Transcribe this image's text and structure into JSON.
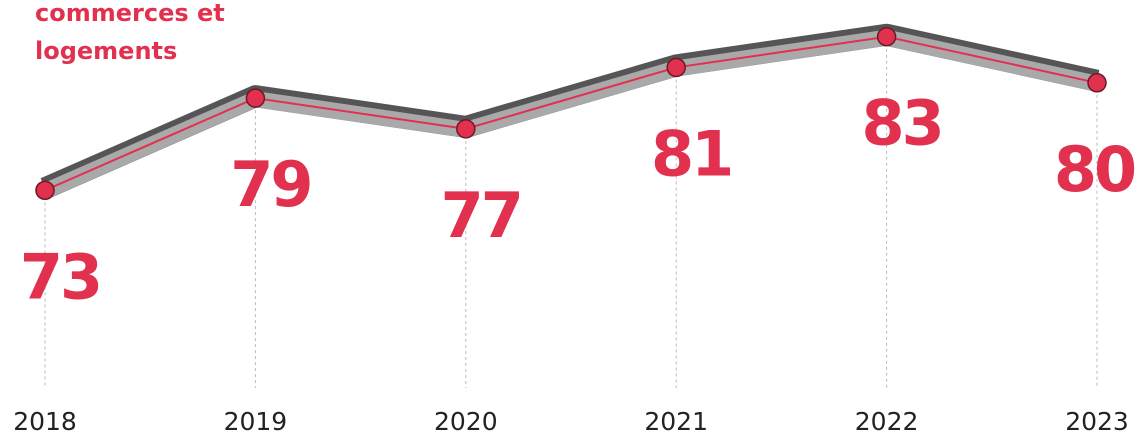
{
  "chart_data": {
    "type": "line",
    "title": "commerces et logements",
    "categories": [
      "2018",
      "2019",
      "2020",
      "2021",
      "2022",
      "2023"
    ],
    "series": [
      {
        "name": "commerces et logements",
        "color": "#e2304f",
        "values": [
          73,
          79,
          77,
          81,
          83,
          80
        ]
      }
    ],
    "ylim": [
      60,
      85
    ]
  }
}
